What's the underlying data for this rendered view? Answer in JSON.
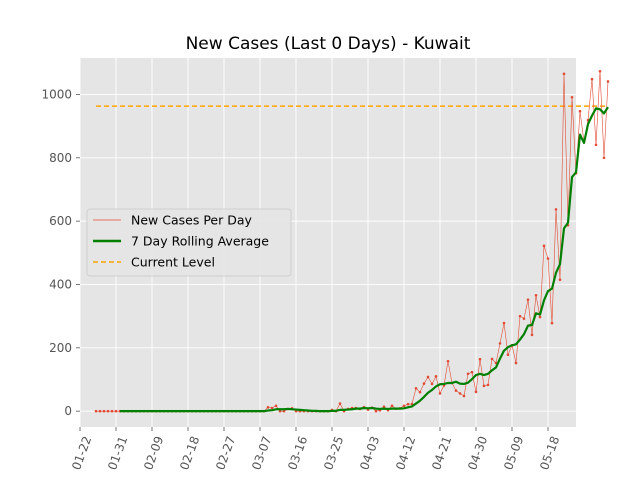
{
  "chart_data": {
    "type": "line",
    "title": "New Cases (Last 0 Days) - Kuwait",
    "xlabel": "",
    "ylabel": "",
    "grid": true,
    "legend_placement": "center-left",
    "x_start": "01-26",
    "xlim": [
      "01-22",
      "05-25"
    ],
    "ylim": [
      -50,
      1115
    ],
    "x_ticks": [
      "01-22",
      "01-31",
      "02-09",
      "02-18",
      "02-27",
      "03-07",
      "03-16",
      "03-25",
      "04-03",
      "04-12",
      "04-21",
      "04-30",
      "05-09",
      "05-18"
    ],
    "y_ticks": [
      0,
      200,
      400,
      600,
      800,
      1000
    ],
    "series": [
      {
        "name": "New Cases Per Day",
        "color": "#E24A33",
        "values": [
          0,
          0,
          0,
          0,
          0,
          0,
          0,
          0,
          0,
          0,
          0,
          0,
          0,
          0,
          0,
          0,
          0,
          0,
          0,
          0,
          0,
          0,
          0,
          0,
          0,
          0,
          0,
          0,
          0,
          0,
          0,
          0,
          0,
          0,
          0,
          0,
          0,
          0,
          0,
          0,
          0,
          0,
          0,
          12,
          10,
          17,
          0,
          0,
          7,
          9,
          0,
          0,
          0,
          0,
          0,
          0,
          0,
          0,
          0,
          4,
          0,
          24,
          0,
          7,
          10,
          10,
          7,
          13,
          5,
          11,
          0,
          3,
          14,
          3,
          17,
          8,
          9,
          17,
          22,
          23,
          72,
          60,
          87,
          108,
          86,
          110,
          56,
          81,
          158,
          89,
          65,
          56,
          48,
          118,
          123,
          61,
          164,
          80,
          83,
          165,
          152,
          214,
          278,
          178,
          208,
          152,
          300,
          292,
          352,
          241,
          366,
          297,
          522,
          482,
          278,
          637,
          415,
          1065,
          587,
          991,
          751,
          947,
          850,
          919,
          1048,
          841,
          1073,
          800,
          1041
        ]
      },
      {
        "name": "7 Day Rolling Average",
        "color": "#008000",
        "values": [
          0,
          0,
          0,
          0,
          0,
          0,
          0,
          0,
          0,
          0,
          0,
          0,
          0,
          0,
          0,
          0,
          0,
          0,
          0,
          0,
          0,
          0,
          0,
          0,
          0,
          0,
          0,
          0,
          0,
          0,
          0,
          0,
          0,
          0,
          0,
          0,
          0,
          0,
          0,
          0,
          0,
          0,
          0,
          2,
          3,
          6,
          6,
          6,
          7,
          6,
          5,
          4,
          3,
          2,
          1,
          1,
          0,
          0,
          0,
          1,
          1,
          4,
          4,
          5,
          6,
          8,
          8,
          10,
          9,
          10,
          8,
          7,
          8,
          7,
          8,
          8,
          8,
          9,
          12,
          15,
          24,
          33,
          45,
          58,
          67,
          78,
          85,
          86,
          89,
          89,
          93,
          87,
          86,
          90,
          101,
          114,
          118,
          114,
          118,
          129,
          138,
          166,
          191,
          202,
          208,
          211,
          226,
          243,
          270,
          272,
          309,
          305,
          350,
          379,
          387,
          437,
          464,
          577,
          595,
          739,
          754,
          873,
          847,
          906,
          933,
          956,
          953,
          940,
          960
        ]
      },
      {
        "name": "Current Level",
        "color": "#FFA500",
        "constant": 963
      }
    ]
  }
}
